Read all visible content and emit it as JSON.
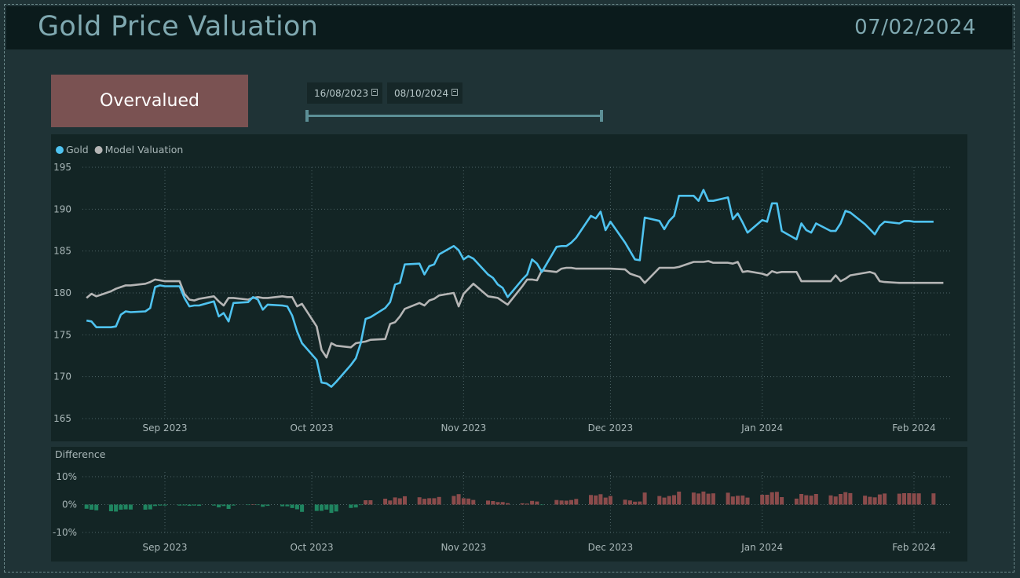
{
  "header": {
    "title": "Gold Price Valuation",
    "date": "07/02/2024"
  },
  "status_badge": "Overvalued",
  "date_range": {
    "start": "16/08/2023",
    "end": "08/10/2024"
  },
  "colors": {
    "gold": "#4fc3f0",
    "model": "#b5b5b5",
    "positive": "#8a4b4b",
    "negative": "#1f8560",
    "badge": "#7a5252"
  },
  "chart_data": [
    {
      "type": "line",
      "title": "",
      "legend_position": "top-left",
      "x_dates": [
        "2023-08-16",
        "2023-08-17",
        "2023-08-18",
        "2023-08-21",
        "2023-08-22",
        "2023-08-23",
        "2023-08-24",
        "2023-08-25",
        "2023-08-28",
        "2023-08-29",
        "2023-08-30",
        "2023-08-31",
        "2023-09-01",
        "2023-09-04",
        "2023-09-05",
        "2023-09-06",
        "2023-09-07",
        "2023-09-08",
        "2023-09-11",
        "2023-09-12",
        "2023-09-13",
        "2023-09-14",
        "2023-09-15",
        "2023-09-18",
        "2023-09-19",
        "2023-09-20",
        "2023-09-21",
        "2023-09-22",
        "2023-09-25",
        "2023-09-26",
        "2023-09-27",
        "2023-09-28",
        "2023-09-29",
        "2023-10-02",
        "2023-10-03",
        "2023-10-04",
        "2023-10-05",
        "2023-10-06",
        "2023-10-09",
        "2023-10-10",
        "2023-10-11",
        "2023-10-12",
        "2023-10-13",
        "2023-10-16",
        "2023-10-17",
        "2023-10-18",
        "2023-10-19",
        "2023-10-20",
        "2023-10-23",
        "2023-10-24",
        "2023-10-25",
        "2023-10-26",
        "2023-10-27",
        "2023-10-30",
        "2023-10-31",
        "2023-11-01",
        "2023-11-02",
        "2023-11-03",
        "2023-11-06",
        "2023-11-07",
        "2023-11-08",
        "2023-11-09",
        "2023-11-10",
        "2023-11-13",
        "2023-11-14",
        "2023-11-15",
        "2023-11-16",
        "2023-11-17",
        "2023-11-20",
        "2023-11-21",
        "2023-11-22",
        "2023-11-23",
        "2023-11-24",
        "2023-11-27",
        "2023-11-28",
        "2023-11-29",
        "2023-11-30",
        "2023-12-01",
        "2023-12-04",
        "2023-12-05",
        "2023-12-06",
        "2023-12-07",
        "2023-12-08",
        "2023-12-11",
        "2023-12-12",
        "2023-12-13",
        "2023-12-14",
        "2023-12-15",
        "2023-12-18",
        "2023-12-19",
        "2023-12-20",
        "2023-12-21",
        "2023-12-22",
        "2023-12-25",
        "2023-12-26",
        "2023-12-27",
        "2023-12-28",
        "2023-12-29",
        "2024-01-01",
        "2024-01-02",
        "2024-01-03",
        "2024-01-04",
        "2024-01-05",
        "2024-01-08",
        "2024-01-09",
        "2024-01-10",
        "2024-01-11",
        "2024-01-12",
        "2024-01-15",
        "2024-01-16",
        "2024-01-17",
        "2024-01-18",
        "2024-01-19",
        "2024-01-22",
        "2024-01-23",
        "2024-01-24",
        "2024-01-25",
        "2024-01-26",
        "2024-01-29",
        "2024-01-30",
        "2024-01-31",
        "2024-02-01",
        "2024-02-02",
        "2024-02-05",
        "2024-02-06",
        "2024-02-07"
      ],
      "series": [
        {
          "name": "Gold",
          "values": [
            176.7,
            176.6,
            175.9,
            175.9,
            176.0,
            177.4,
            177.8,
            177.7,
            177.8,
            178.2,
            180.7,
            180.9,
            180.8,
            180.8,
            179.4,
            178.4,
            178.5,
            178.5,
            179.0,
            177.2,
            177.6,
            176.6,
            178.8,
            178.9,
            179.5,
            179.2,
            178.0,
            178.6,
            178.5,
            178.4,
            177.3,
            175.4,
            174.0,
            172.0,
            169.3,
            169.2,
            168.8,
            169.4,
            171.4,
            172.2,
            174.0,
            176.9,
            177.1,
            178.2,
            178.9,
            181.0,
            181.2,
            183.4,
            183.5,
            182.2,
            183.2,
            183.4,
            184.6,
            185.6,
            185.1,
            184.0,
            184.4,
            184.1,
            182.2,
            181.8,
            181.0,
            180.6,
            179.5,
            181.6,
            182.2,
            184.0,
            183.5,
            182.5,
            185.5,
            185.6,
            185.6,
            186.0,
            186.6,
            189.2,
            188.9,
            189.7,
            187.5,
            188.5,
            186.0,
            185.0,
            184.0,
            183.9,
            189.0,
            188.6,
            187.6,
            188.6,
            189.2,
            191.6,
            191.6,
            191.0,
            192.3,
            191.0,
            191.0,
            191.4,
            188.8,
            189.5,
            188.4,
            187.2,
            188.7,
            188.5,
            190.7,
            190.7,
            187.4,
            186.4,
            188.3,
            187.5,
            187.2,
            188.3,
            187.4,
            187.4,
            188.3,
            189.8,
            189.6,
            188.2,
            187.6,
            187.0,
            188.0,
            188.5,
            188.3,
            188.6,
            188.6,
            188.5,
            188.5,
            188.5
          ],
          "color": "#4fc3f0"
        },
        {
          "name": "Model Valuation",
          "values": [
            179.4,
            179.9,
            179.6,
            180.2,
            180.5,
            180.7,
            180.9,
            180.9,
            181.1,
            181.3,
            181.6,
            181.5,
            181.4,
            181.4,
            179.9,
            179.2,
            179.1,
            179.3,
            179.6,
            179.0,
            178.5,
            179.4,
            179.4,
            179.2,
            179.4,
            179.5,
            179.4,
            179.4,
            179.6,
            179.5,
            179.5,
            178.4,
            178.7,
            176.0,
            173.2,
            172.3,
            174.0,
            173.7,
            173.5,
            174.0,
            174.1,
            174.2,
            174.4,
            174.5,
            176.3,
            176.5,
            177.2,
            178.1,
            178.8,
            178.5,
            179.1,
            179.3,
            179.7,
            180.0,
            178.4,
            179.9,
            180.5,
            181.1,
            179.6,
            179.5,
            179.4,
            179.0,
            178.6,
            180.8,
            181.6,
            181.6,
            181.5,
            182.7,
            182.5,
            182.9,
            183.0,
            183.0,
            182.9,
            182.9,
            182.9,
            182.9,
            182.9,
            182.9,
            182.8,
            182.3,
            182.1,
            181.9,
            181.2,
            183.0,
            183.0,
            183.0,
            183.0,
            183.1,
            183.7,
            183.7,
            183.7,
            183.8,
            183.6,
            183.6,
            183.5,
            183.7,
            182.5,
            182.6,
            182.3,
            182.1,
            182.6,
            182.4,
            182.5,
            182.5,
            181.4,
            181.4,
            181.4,
            181.4,
            181.4,
            182.1,
            181.4,
            181.7,
            182.1,
            182.4,
            182.5,
            182.3,
            181.4,
            181.3,
            181.2,
            181.2,
            181.2,
            181.2,
            181.2,
            181.2,
            181.2,
            181.2
          ],
          "color": "#b5b5b5"
        }
      ],
      "x_ticks": [
        "Sep 2023",
        "Oct 2023",
        "Nov 2023",
        "Dec 2023",
        "Jan 2024",
        "Feb 2024"
      ],
      "y_ticks": [
        165,
        170,
        175,
        180,
        185,
        190,
        195
      ],
      "ylim": [
        165,
        195
      ],
      "grid": true
    },
    {
      "type": "bar",
      "title": "Difference",
      "x_ticks": [
        "Sep 2023",
        "Oct 2023",
        "Nov 2023",
        "Dec 2023",
        "Jan 2024",
        "Feb 2024"
      ],
      "y_ticks": [
        "10%",
        "0%",
        "-10%"
      ],
      "ylim": [
        -10,
        10
      ],
      "grid": true
    }
  ]
}
